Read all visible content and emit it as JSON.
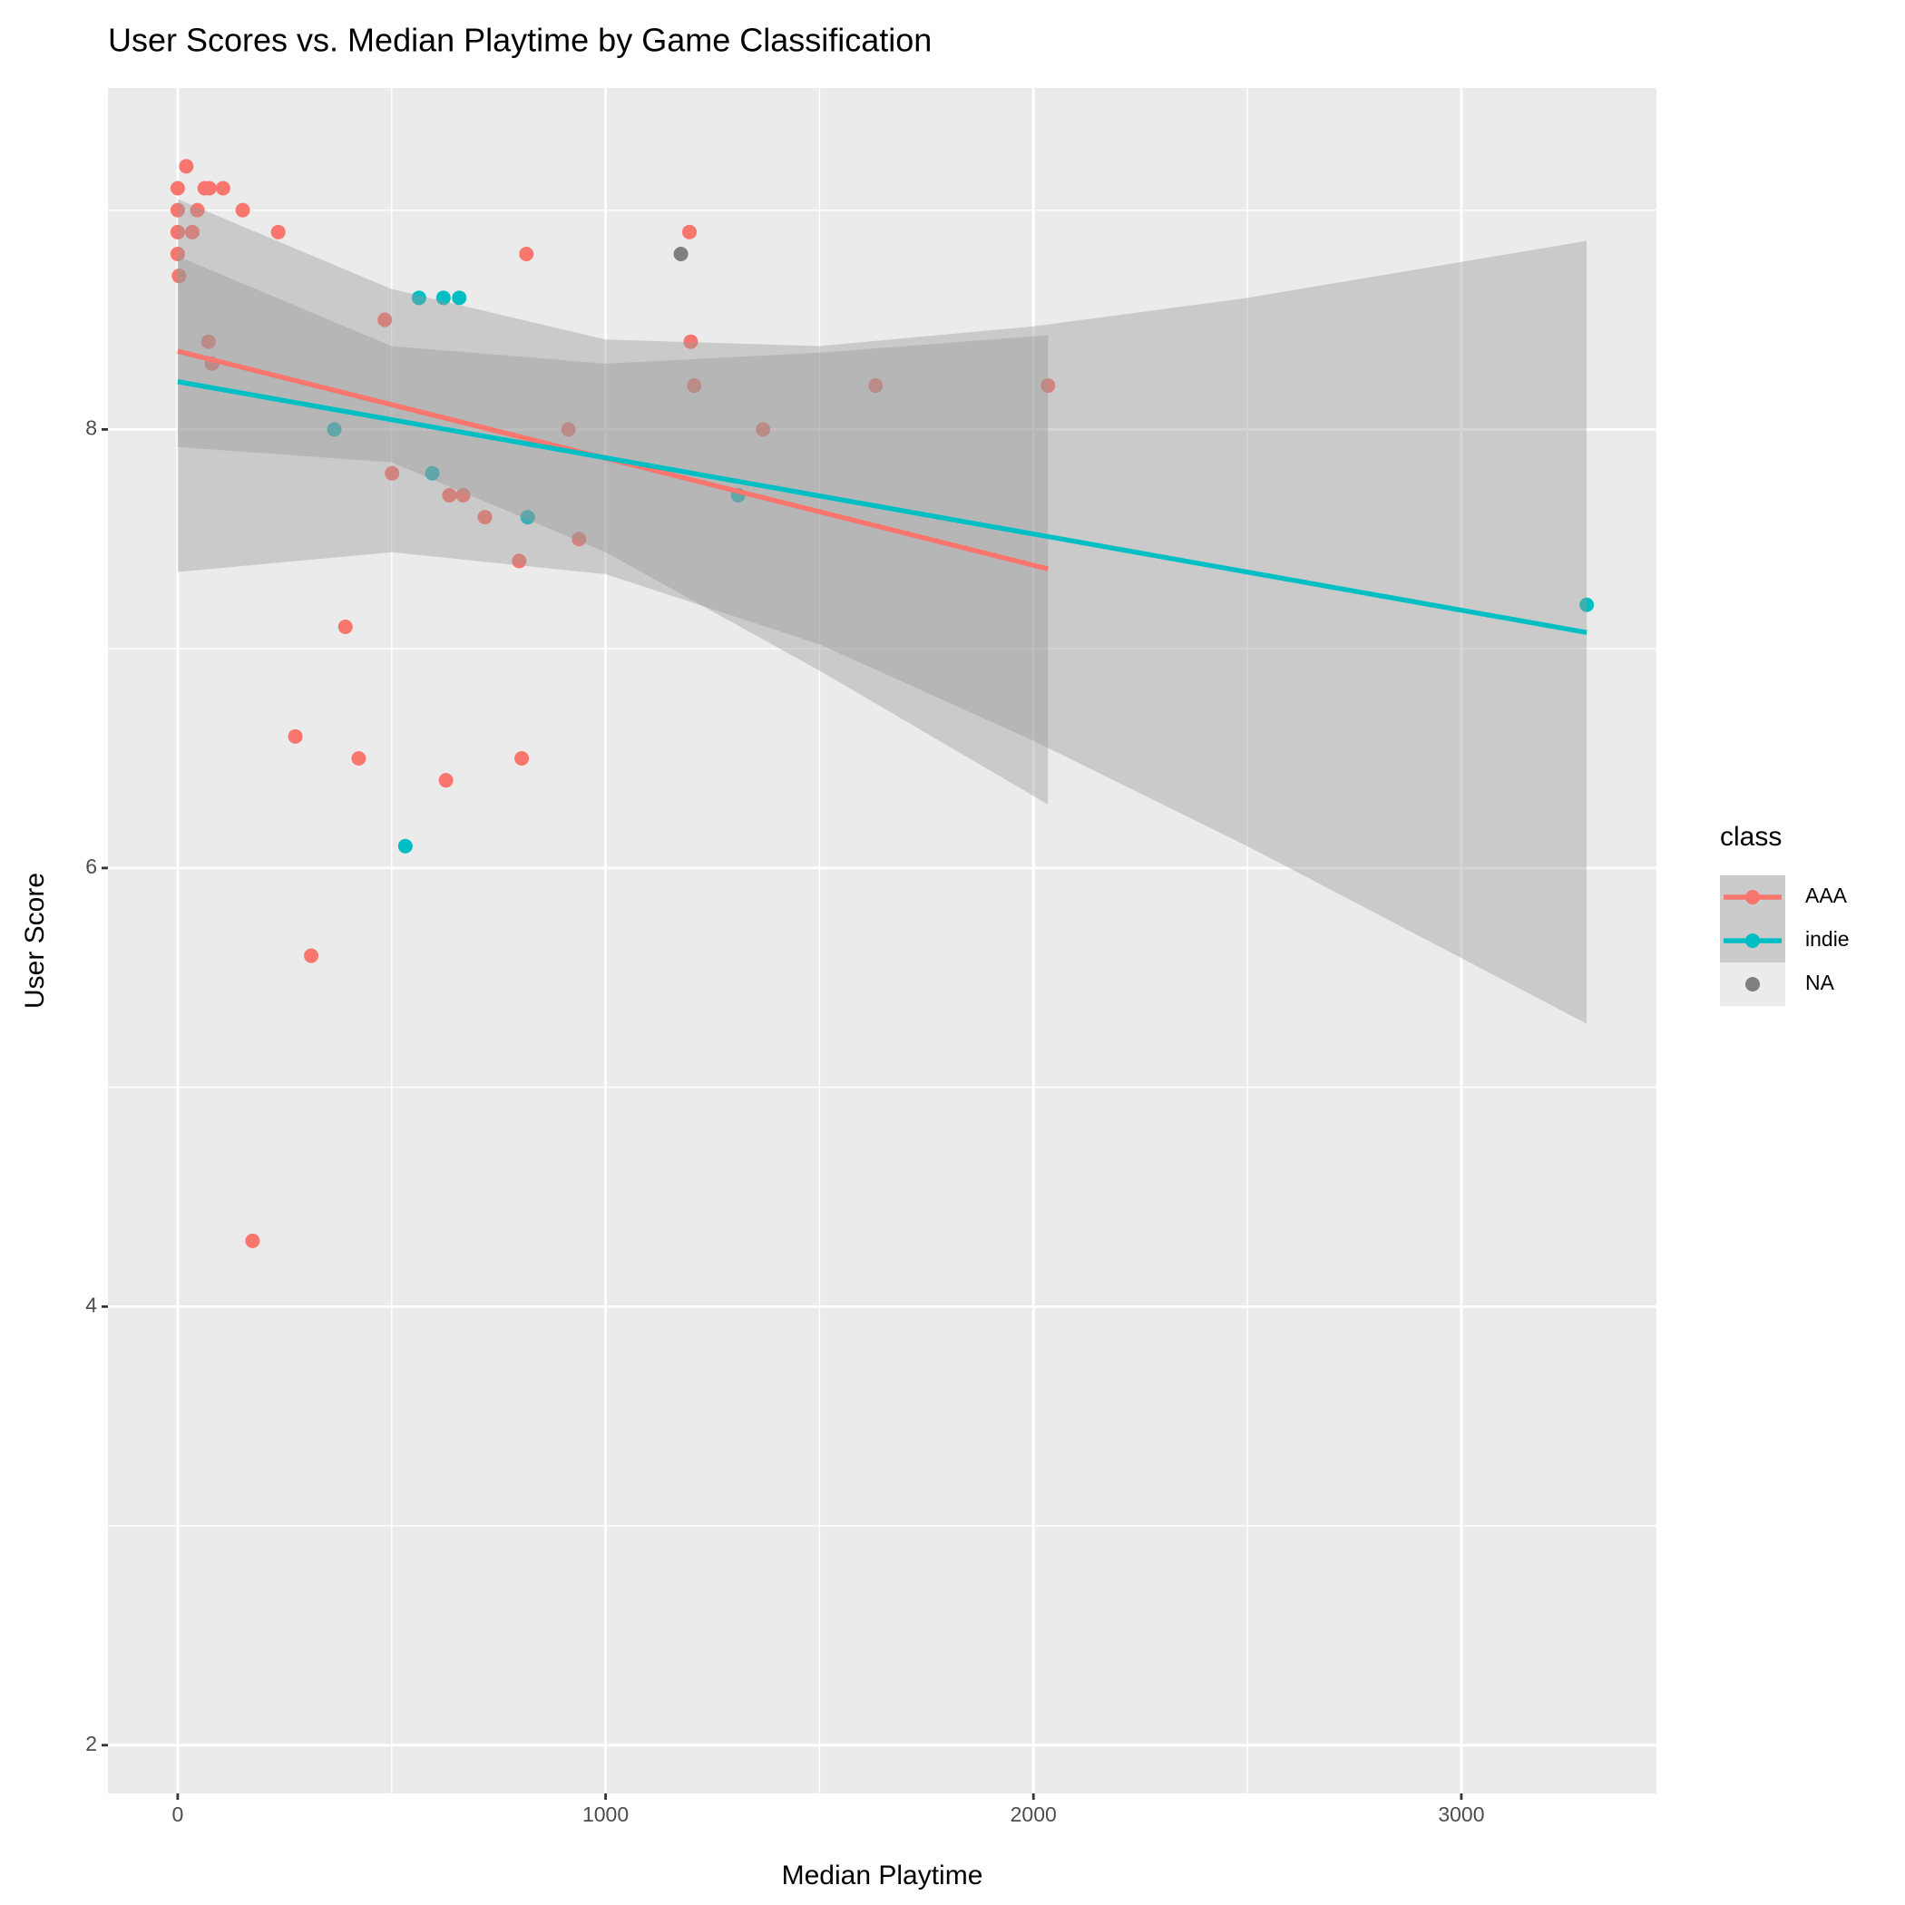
{
  "chart_data": {
    "type": "scatter",
    "title": "User Scores vs. Median Playtime by Game Classification",
    "x_label": "Median Playtime",
    "y_label": "User Score",
    "legend_title": "class",
    "legend_position": "right",
    "xlim": [
      -163,
      3456
    ],
    "ylim": [
      1.78,
      9.557
    ],
    "xticks": [
      0,
      1000,
      2000,
      3000
    ],
    "yticks": [
      2,
      4,
      6,
      8
    ],
    "x_minor_ticks": [
      500,
      1500,
      2500
    ],
    "y_minor_ticks": [
      3,
      5,
      7,
      9
    ],
    "grid": true,
    "band_color": "#999999",
    "series": [
      {
        "name": "AAA",
        "color": "#F8766D",
        "x": [
          0,
          20,
          0,
          0,
          0,
          3,
          34,
          46,
          63,
          74,
          106,
          152,
          235,
          72,
          80,
          484,
          815,
          1196,
          1199,
          1207,
          1631,
          2034,
          1368,
          913,
          501,
          635,
          667,
          718,
          938,
          798,
          392,
          275,
          423,
          804,
          627,
          312,
          175
        ],
        "y": [
          9.1,
          9.2,
          9.0,
          8.9,
          8.8,
          8.7,
          8.9,
          9.0,
          9.1,
          9.1,
          9.1,
          9.0,
          8.9,
          8.4,
          8.3,
          8.5,
          8.8,
          8.9,
          8.4,
          8.2,
          8.2,
          8.2,
          8.0,
          8.0,
          7.8,
          7.7,
          7.7,
          7.6,
          7.5,
          7.4,
          7.1,
          6.6,
          6.5,
          6.5,
          6.4,
          5.6,
          4.3
        ],
        "fit_x": [
          0,
          2034
        ],
        "fit_y": [
          8.357,
          7.364
        ],
        "band_x": [
          0,
          500,
          1000,
          1500,
          2034
        ],
        "band_upper": [
          8.79,
          8.38,
          8.3,
          8.35,
          8.43
        ],
        "band_lower": [
          7.92,
          7.85,
          7.44,
          6.9,
          6.29
        ]
      },
      {
        "name": "indie",
        "color": "#00BFC4",
        "x": [
          564,
          621,
          658,
          366,
          595,
          818,
          1310,
          532,
          3293
        ],
        "y": [
          8.6,
          8.6,
          8.6,
          8.0,
          7.8,
          7.6,
          7.7,
          6.1,
          7.2
        ],
        "fit_x": [
          0,
          3293
        ],
        "fit_y": [
          8.218,
          7.074
        ],
        "band_x": [
          0,
          500,
          1000,
          1500,
          2000,
          2500,
          3293
        ],
        "band_upper": [
          9.05,
          8.64,
          8.41,
          8.38,
          8.47,
          8.6,
          8.86
        ],
        "band_lower": [
          7.35,
          7.44,
          7.34,
          7.02,
          6.58,
          6.1,
          5.29
        ]
      },
      {
        "name": "NA",
        "color": "#7F7F7F",
        "x": [
          1176
        ],
        "y": [
          8.8
        ]
      }
    ]
  }
}
